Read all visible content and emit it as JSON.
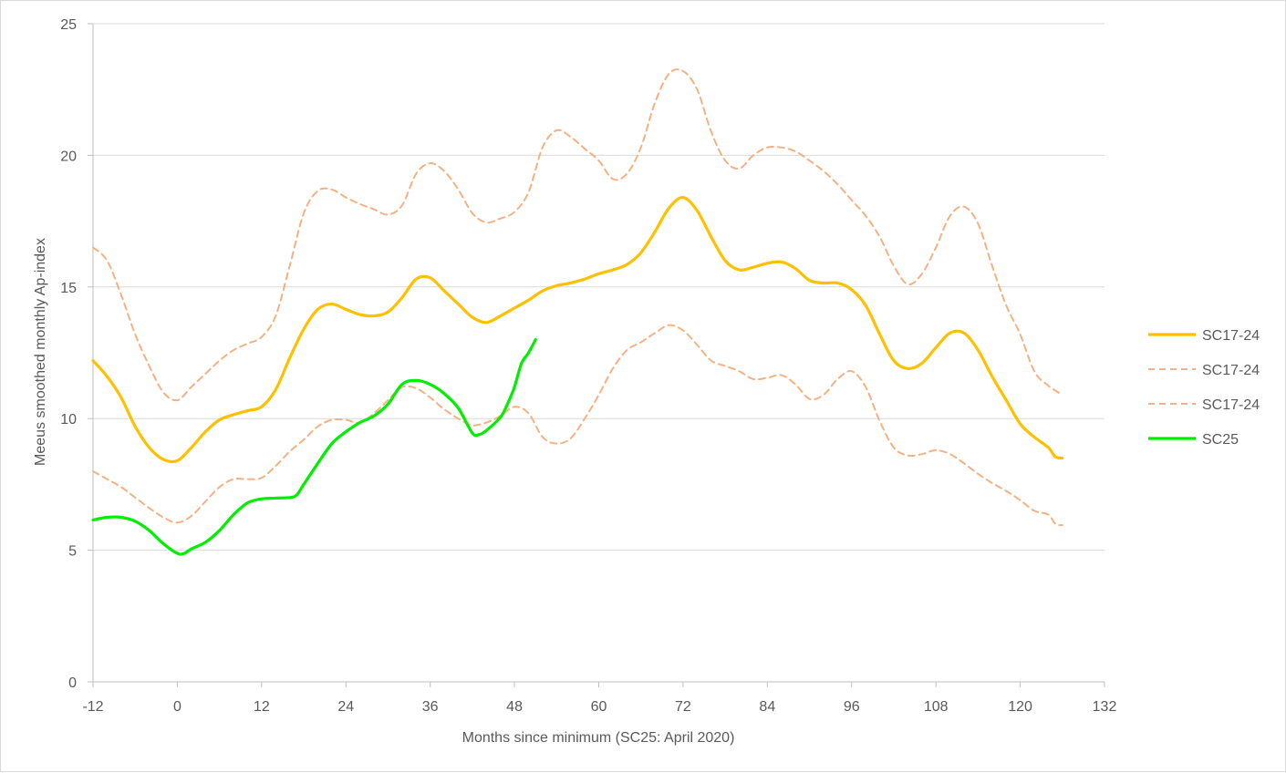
{
  "chart_data": {
    "type": "line",
    "xlabel": "Months since minimum (SC25: April 2020)",
    "ylabel": "Meeus smoothed monthly Ap-index",
    "xlim": [
      -12,
      132
    ],
    "ylim": [
      0,
      25
    ],
    "xticks": [
      -12,
      0,
      12,
      24,
      36,
      48,
      60,
      72,
      84,
      96,
      108,
      120,
      132
    ],
    "yticks": [
      0,
      5,
      10,
      15,
      20,
      25
    ],
    "grid": "horizontal",
    "legend_position": "right",
    "series": [
      {
        "name": "SC17-24",
        "color": "#ffc000",
        "style": "solid",
        "points": [
          [
            -12,
            12.2
          ],
          [
            -10,
            11.6
          ],
          [
            -8,
            10.8
          ],
          [
            -6,
            9.7
          ],
          [
            -4,
            8.9
          ],
          [
            -2,
            8.45
          ],
          [
            0,
            8.4
          ],
          [
            2,
            8.9
          ],
          [
            4,
            9.5
          ],
          [
            6,
            9.95
          ],
          [
            8,
            10.15
          ],
          [
            10,
            10.3
          ],
          [
            12,
            10.45
          ],
          [
            14,
            11.1
          ],
          [
            16,
            12.3
          ],
          [
            18,
            13.4
          ],
          [
            20,
            14.15
          ],
          [
            22,
            14.35
          ],
          [
            24,
            14.15
          ],
          [
            26,
            13.95
          ],
          [
            28,
            13.9
          ],
          [
            30,
            14.05
          ],
          [
            32,
            14.6
          ],
          [
            34,
            15.3
          ],
          [
            36,
            15.35
          ],
          [
            38,
            14.85
          ],
          [
            40,
            14.35
          ],
          [
            42,
            13.85
          ],
          [
            44,
            13.65
          ],
          [
            46,
            13.9
          ],
          [
            48,
            14.2
          ],
          [
            50,
            14.5
          ],
          [
            52,
            14.85
          ],
          [
            54,
            15.05
          ],
          [
            56,
            15.15
          ],
          [
            58,
            15.3
          ],
          [
            60,
            15.5
          ],
          [
            62,
            15.65
          ],
          [
            64,
            15.85
          ],
          [
            66,
            16.3
          ],
          [
            68,
            17.1
          ],
          [
            70,
            18.0
          ],
          [
            72,
            18.4
          ],
          [
            74,
            17.9
          ],
          [
            76,
            16.9
          ],
          [
            78,
            16.0
          ],
          [
            80,
            15.65
          ],
          [
            82,
            15.75
          ],
          [
            84,
            15.9
          ],
          [
            86,
            15.95
          ],
          [
            88,
            15.7
          ],
          [
            90,
            15.25
          ],
          [
            92,
            15.15
          ],
          [
            94,
            15.15
          ],
          [
            96,
            14.9
          ],
          [
            98,
            14.3
          ],
          [
            100,
            13.2
          ],
          [
            102,
            12.2
          ],
          [
            104,
            11.9
          ],
          [
            106,
            12.1
          ],
          [
            108,
            12.7
          ],
          [
            110,
            13.25
          ],
          [
            112,
            13.25
          ],
          [
            114,
            12.6
          ],
          [
            116,
            11.6
          ],
          [
            118,
            10.7
          ],
          [
            120,
            9.8
          ],
          [
            122,
            9.3
          ],
          [
            124,
            8.9
          ],
          [
            125,
            8.55
          ],
          [
            126,
            8.5
          ]
        ]
      },
      {
        "name": "SC17-24",
        "color": "#f4b183",
        "style": "dashed",
        "points": [
          [
            -12,
            16.5
          ],
          [
            -10,
            16.0
          ],
          [
            -8,
            14.7
          ],
          [
            -6,
            13.2
          ],
          [
            -4,
            12.0
          ],
          [
            -2,
            11.0
          ],
          [
            0,
            10.7
          ],
          [
            2,
            11.2
          ],
          [
            4,
            11.7
          ],
          [
            6,
            12.2
          ],
          [
            8,
            12.6
          ],
          [
            10,
            12.85
          ],
          [
            12,
            13.1
          ],
          [
            14,
            13.9
          ],
          [
            16,
            15.8
          ],
          [
            18,
            17.8
          ],
          [
            20,
            18.65
          ],
          [
            22,
            18.7
          ],
          [
            24,
            18.4
          ],
          [
            26,
            18.15
          ],
          [
            28,
            17.95
          ],
          [
            30,
            17.75
          ],
          [
            32,
            18.1
          ],
          [
            34,
            19.3
          ],
          [
            36,
            19.7
          ],
          [
            38,
            19.4
          ],
          [
            40,
            18.7
          ],
          [
            42,
            17.8
          ],
          [
            44,
            17.45
          ],
          [
            46,
            17.6
          ],
          [
            48,
            17.85
          ],
          [
            50,
            18.6
          ],
          [
            52,
            20.3
          ],
          [
            54,
            20.95
          ],
          [
            56,
            20.7
          ],
          [
            58,
            20.25
          ],
          [
            60,
            19.8
          ],
          [
            62,
            19.1
          ],
          [
            64,
            19.3
          ],
          [
            66,
            20.3
          ],
          [
            68,
            22.0
          ],
          [
            70,
            23.1
          ],
          [
            72,
            23.2
          ],
          [
            74,
            22.5
          ],
          [
            76,
            20.9
          ],
          [
            78,
            19.8
          ],
          [
            80,
            19.5
          ],
          [
            82,
            20.0
          ],
          [
            84,
            20.3
          ],
          [
            86,
            20.3
          ],
          [
            88,
            20.15
          ],
          [
            90,
            19.8
          ],
          [
            92,
            19.4
          ],
          [
            94,
            18.9
          ],
          [
            96,
            18.3
          ],
          [
            98,
            17.7
          ],
          [
            100,
            16.9
          ],
          [
            102,
            15.8
          ],
          [
            104,
            15.1
          ],
          [
            106,
            15.5
          ],
          [
            108,
            16.5
          ],
          [
            110,
            17.7
          ],
          [
            112,
            18.05
          ],
          [
            114,
            17.4
          ],
          [
            116,
            15.8
          ],
          [
            118,
            14.3
          ],
          [
            120,
            13.2
          ],
          [
            122,
            11.8
          ],
          [
            124,
            11.25
          ],
          [
            126,
            10.9
          ]
        ]
      },
      {
        "name": "SC17-24",
        "color": "#f4b183",
        "style": "dashed",
        "points": [
          [
            -12,
            8.0
          ],
          [
            -10,
            7.7
          ],
          [
            -8,
            7.4
          ],
          [
            -6,
            7.0
          ],
          [
            -4,
            6.6
          ],
          [
            -2,
            6.25
          ],
          [
            0,
            6.05
          ],
          [
            2,
            6.3
          ],
          [
            4,
            6.85
          ],
          [
            6,
            7.4
          ],
          [
            8,
            7.7
          ],
          [
            10,
            7.7
          ],
          [
            12,
            7.75
          ],
          [
            14,
            8.2
          ],
          [
            16,
            8.75
          ],
          [
            18,
            9.2
          ],
          [
            20,
            9.7
          ],
          [
            22,
            9.95
          ],
          [
            24,
            9.95
          ],
          [
            26,
            9.85
          ],
          [
            28,
            10.2
          ],
          [
            30,
            10.7
          ],
          [
            32,
            11.2
          ],
          [
            34,
            11.15
          ],
          [
            36,
            10.8
          ],
          [
            38,
            10.35
          ],
          [
            40,
            10.0
          ],
          [
            42,
            9.75
          ],
          [
            44,
            9.85
          ],
          [
            46,
            10.1
          ],
          [
            48,
            10.45
          ],
          [
            50,
            10.2
          ],
          [
            52,
            9.3
          ],
          [
            54,
            9.05
          ],
          [
            56,
            9.25
          ],
          [
            58,
            10.0
          ],
          [
            60,
            10.9
          ],
          [
            62,
            11.9
          ],
          [
            64,
            12.6
          ],
          [
            66,
            12.9
          ],
          [
            68,
            13.25
          ],
          [
            70,
            13.55
          ],
          [
            72,
            13.35
          ],
          [
            74,
            12.8
          ],
          [
            76,
            12.2
          ],
          [
            78,
            12.0
          ],
          [
            80,
            11.8
          ],
          [
            82,
            11.5
          ],
          [
            84,
            11.55
          ],
          [
            86,
            11.65
          ],
          [
            88,
            11.3
          ],
          [
            90,
            10.75
          ],
          [
            92,
            10.9
          ],
          [
            94,
            11.5
          ],
          [
            96,
            11.8
          ],
          [
            98,
            11.2
          ],
          [
            100,
            9.9
          ],
          [
            102,
            8.9
          ],
          [
            104,
            8.6
          ],
          [
            106,
            8.65
          ],
          [
            108,
            8.8
          ],
          [
            110,
            8.65
          ],
          [
            112,
            8.3
          ],
          [
            114,
            7.9
          ],
          [
            116,
            7.55
          ],
          [
            118,
            7.25
          ],
          [
            120,
            6.9
          ],
          [
            122,
            6.5
          ],
          [
            124,
            6.35
          ],
          [
            125,
            6.0
          ],
          [
            126,
            5.95
          ]
        ]
      },
      {
        "name": "SC25",
        "color": "#00ee00",
        "style": "solid",
        "points": [
          [
            -12,
            6.15
          ],
          [
            -10,
            6.25
          ],
          [
            -8,
            6.25
          ],
          [
            -6,
            6.1
          ],
          [
            -4,
            5.75
          ],
          [
            -2,
            5.25
          ],
          [
            0,
            4.88
          ],
          [
            1,
            4.88
          ],
          [
            2,
            5.05
          ],
          [
            4,
            5.3
          ],
          [
            6,
            5.75
          ],
          [
            8,
            6.35
          ],
          [
            10,
            6.8
          ],
          [
            12,
            6.95
          ],
          [
            14,
            6.98
          ],
          [
            16,
            7.0
          ],
          [
            17,
            7.1
          ],
          [
            18,
            7.5
          ],
          [
            20,
            8.3
          ],
          [
            22,
            9.05
          ],
          [
            24,
            9.5
          ],
          [
            26,
            9.85
          ],
          [
            28,
            10.1
          ],
          [
            30,
            10.55
          ],
          [
            32,
            11.3
          ],
          [
            34,
            11.45
          ],
          [
            36,
            11.3
          ],
          [
            38,
            10.95
          ],
          [
            40,
            10.4
          ],
          [
            42,
            9.45
          ],
          [
            43,
            9.4
          ],
          [
            44,
            9.55
          ],
          [
            46,
            10.05
          ],
          [
            47,
            10.55
          ],
          [
            48,
            11.2
          ],
          [
            49,
            12.1
          ],
          [
            50,
            12.5
          ],
          [
            51,
            13.0
          ]
        ]
      }
    ]
  }
}
